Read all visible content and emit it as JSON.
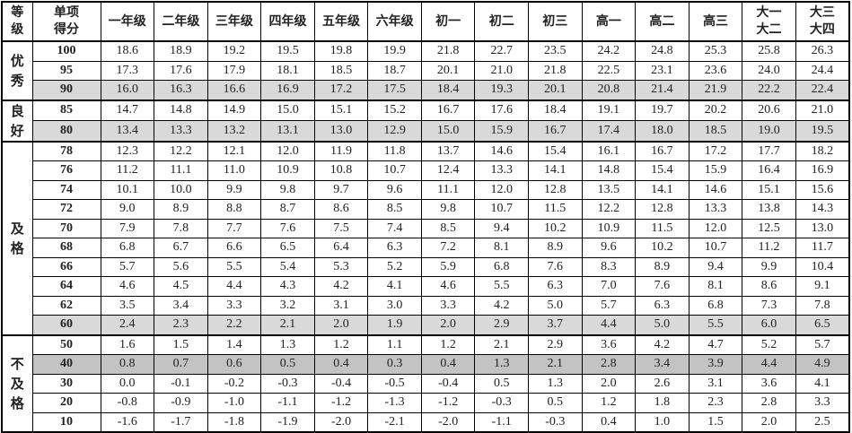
{
  "table": {
    "headers": [
      "等级",
      "单项得分",
      "一年级",
      "二年级",
      "三年级",
      "四年级",
      "五年级",
      "六年级",
      "初一",
      "初二",
      "初三",
      "高一",
      "高二",
      "高三",
      "大一大二",
      "大三大四"
    ],
    "header_lines": [
      [
        "等",
        "级"
      ],
      [
        "单项",
        "得分"
      ],
      [
        "一年级"
      ],
      [
        "二年级"
      ],
      [
        "三年级"
      ],
      [
        "四年级"
      ],
      [
        "五年级"
      ],
      [
        "六年级"
      ],
      [
        "初一"
      ],
      [
        "初二"
      ],
      [
        "初三"
      ],
      [
        "高一"
      ],
      [
        "高二"
      ],
      [
        "高三"
      ],
      [
        "大一",
        "大二"
      ],
      [
        "大三",
        "大四"
      ]
    ],
    "groups": [
      {
        "level": "优秀",
        "level_lines": [
          "优",
          "秀"
        ],
        "rows": [
          {
            "score": "100",
            "values": [
              "18.6",
              "18.9",
              "19.2",
              "19.5",
              "19.8",
              "19.9",
              "21.8",
              "22.7",
              "23.5",
              "24.2",
              "24.8",
              "25.3",
              "25.8",
              "26.3"
            ]
          },
          {
            "score": "95",
            "values": [
              "17.3",
              "17.6",
              "17.9",
              "18.1",
              "18.5",
              "18.7",
              "20.1",
              "21.0",
              "21.8",
              "22.5",
              "23.1",
              "23.6",
              "24.0",
              "24.4"
            ]
          },
          {
            "score": "90",
            "highlight": "light",
            "values": [
              "16.0",
              "16.3",
              "16.6",
              "16.9",
              "17.2",
              "17.5",
              "18.4",
              "19.3",
              "20.1",
              "20.8",
              "21.4",
              "21.9",
              "22.2",
              "22.4"
            ]
          }
        ]
      },
      {
        "level": "良好",
        "level_lines": [
          "良",
          "好"
        ],
        "rows": [
          {
            "score": "85",
            "values": [
              "14.7",
              "14.8",
              "14.9",
              "15.0",
              "15.1",
              "15.2",
              "16.7",
              "17.6",
              "18.4",
              "19.1",
              "19.7",
              "20.2",
              "20.6",
              "21.0"
            ]
          },
          {
            "score": "80",
            "highlight": "light",
            "values": [
              "13.4",
              "13.3",
              "13.2",
              "13.1",
              "13.0",
              "12.9",
              "15.0",
              "15.9",
              "16.7",
              "17.4",
              "18.0",
              "18.5",
              "19.0",
              "19.5"
            ]
          }
        ]
      },
      {
        "level": "及格",
        "level_lines": [
          "及",
          "格"
        ],
        "rows": [
          {
            "score": "78",
            "values": [
              "12.3",
              "12.2",
              "12.1",
              "12.0",
              "11.9",
              "11.8",
              "13.7",
              "14.6",
              "15.4",
              "16.1",
              "16.7",
              "17.2",
              "17.7",
              "18.2"
            ]
          },
          {
            "score": "76",
            "values": [
              "11.2",
              "11.1",
              "11.0",
              "10.9",
              "10.8",
              "10.7",
              "12.4",
              "13.3",
              "14.1",
              "14.8",
              "15.4",
              "15.9",
              "16.4",
              "16.9"
            ]
          },
          {
            "score": "74",
            "values": [
              "10.1",
              "10.0",
              "9.9",
              "9.8",
              "9.7",
              "9.6",
              "11.1",
              "12.0",
              "12.8",
              "13.5",
              "14.1",
              "14.6",
              "15.1",
              "15.6"
            ]
          },
          {
            "score": "72",
            "values": [
              "9.0",
              "8.9",
              "8.8",
              "8.7",
              "8.6",
              "8.5",
              "9.8",
              "10.7",
              "11.5",
              "12.2",
              "12.8",
              "13.3",
              "13.8",
              "14.3"
            ]
          },
          {
            "score": "70",
            "values": [
              "7.9",
              "7.8",
              "7.7",
              "7.6",
              "7.5",
              "7.4",
              "8.5",
              "9.4",
              "10.2",
              "10.9",
              "11.5",
              "12.0",
              "12.5",
              "13.0"
            ]
          },
          {
            "score": "68",
            "values": [
              "6.8",
              "6.7",
              "6.6",
              "6.5",
              "6.4",
              "6.3",
              "7.2",
              "8.1",
              "8.9",
              "9.6",
              "10.2",
              "10.7",
              "11.2",
              "11.7"
            ]
          },
          {
            "score": "66",
            "values": [
              "5.7",
              "5.6",
              "5.5",
              "5.4",
              "5.3",
              "5.2",
              "5.9",
              "6.8",
              "7.6",
              "8.3",
              "8.9",
              "9.4",
              "9.9",
              "10.4"
            ]
          },
          {
            "score": "64",
            "values": [
              "4.6",
              "4.5",
              "4.4",
              "4.3",
              "4.2",
              "4.1",
              "4.6",
              "5.5",
              "6.3",
              "7.0",
              "7.6",
              "8.1",
              "8.6",
              "9.1"
            ]
          },
          {
            "score": "62",
            "values": [
              "3.5",
              "3.4",
              "3.3",
              "3.2",
              "3.1",
              "3.0",
              "3.3",
              "4.2",
              "5.0",
              "5.7",
              "6.3",
              "6.8",
              "7.3",
              "7.8"
            ]
          },
          {
            "score": "60",
            "highlight": "light",
            "values": [
              "2.4",
              "2.3",
              "2.2",
              "2.1",
              "2.0",
              "1.9",
              "2.0",
              "2.9",
              "3.7",
              "4.4",
              "5.0",
              "5.5",
              "6.0",
              "6.5"
            ]
          }
        ]
      },
      {
        "level": "不及格",
        "level_lines": [
          "不",
          "及",
          "格"
        ],
        "rows": [
          {
            "score": "50",
            "values": [
              "1.6",
              "1.5",
              "1.4",
              "1.3",
              "1.2",
              "1.1",
              "1.2",
              "2.1",
              "2.9",
              "3.6",
              "4.2",
              "4.7",
              "5.2",
              "5.7"
            ]
          },
          {
            "score": "40",
            "highlight": "dark",
            "values": [
              "0.8",
              "0.7",
              "0.6",
              "0.5",
              "0.4",
              "0.3",
              "0.4",
              "1.3",
              "2.1",
              "2.8",
              "3.4",
              "3.9",
              "4.4",
              "4.9"
            ]
          },
          {
            "score": "30",
            "values": [
              "0.0",
              "-0.1",
              "-0.2",
              "-0.3",
              "-0.4",
              "-0.5",
              "-0.4",
              "0.5",
              "1.3",
              "2.0",
              "2.6",
              "3.1",
              "3.6",
              "4.1"
            ]
          },
          {
            "score": "20",
            "values": [
              "-0.8",
              "-0.9",
              "-1.0",
              "-1.1",
              "-1.2",
              "-1.3",
              "-1.2",
              "-0.3",
              "0.5",
              "1.2",
              "1.8",
              "2.3",
              "2.8",
              "3.3"
            ]
          },
          {
            "score": "10",
            "values": [
              "-1.6",
              "-1.7",
              "-1.8",
              "-1.9",
              "-2.0",
              "-2.1",
              "-2.0",
              "-1.1",
              "-0.3",
              "0.4",
              "1.0",
              "1.5",
              "2.0",
              "2.5"
            ]
          }
        ]
      }
    ],
    "colors": {
      "highlight_light": "#d9d9d9",
      "highlight_dark": "#c3c3c3",
      "border": "#000000"
    }
  }
}
